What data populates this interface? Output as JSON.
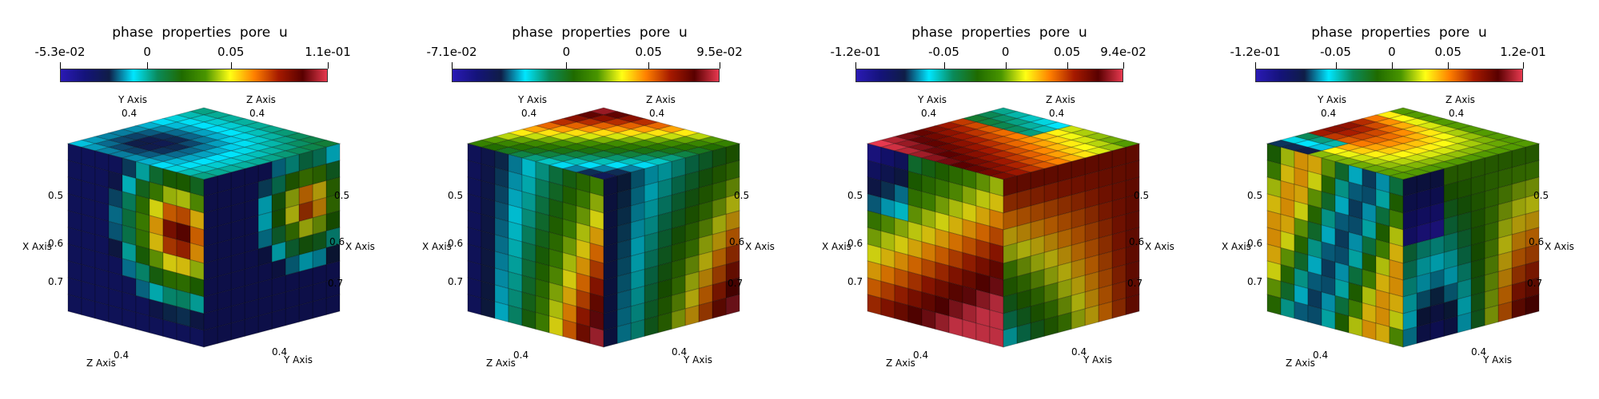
{
  "colorbar_title": "phase  properties  pore  u",
  "colormap": [
    "#2a1ab5",
    "#14137a",
    "#0f1d47",
    "#00e6ff",
    "#0a8a5a",
    "#1f6b00",
    "#4a9600",
    "#ffff14",
    "#ff8000",
    "#a61a00",
    "#590000",
    "#e6394f"
  ],
  "axis_labels": {
    "x": "X Axis",
    "y": "Y Axis",
    "z": "Z Axis"
  },
  "tick_values": {
    "top": "0.4",
    "left": [
      "0.5",
      "0.6",
      "0.7"
    ],
    "right": [
      "0.5",
      "0.6",
      "0.7"
    ],
    "bottom": "0.4"
  },
  "panels": [
    {
      "ticks": [
        "-5.3e-02",
        "0",
        "0.05",
        "1.1e-01"
      ],
      "tick_fracs": [
        0,
        0.326,
        0.638,
        1
      ]
    },
    {
      "ticks": [
        "-7.1e-02",
        "0",
        "0.05",
        "9.5e-02"
      ],
      "tick_fracs": [
        0,
        0.428,
        0.735,
        1
      ]
    },
    {
      "ticks": [
        "-1.2e-01",
        "-0.05",
        "0",
        "0.05",
        "9.4e-02"
      ],
      "tick_fracs": [
        0,
        0.33,
        0.56,
        0.79,
        1
      ]
    },
    {
      "ticks": [
        "-1.2e-01",
        "-0.05",
        "0",
        "0.05",
        "1.2e-01"
      ],
      "tick_fracs": [
        0,
        0.3,
        0.51,
        0.72,
        1
      ]
    }
  ]
}
